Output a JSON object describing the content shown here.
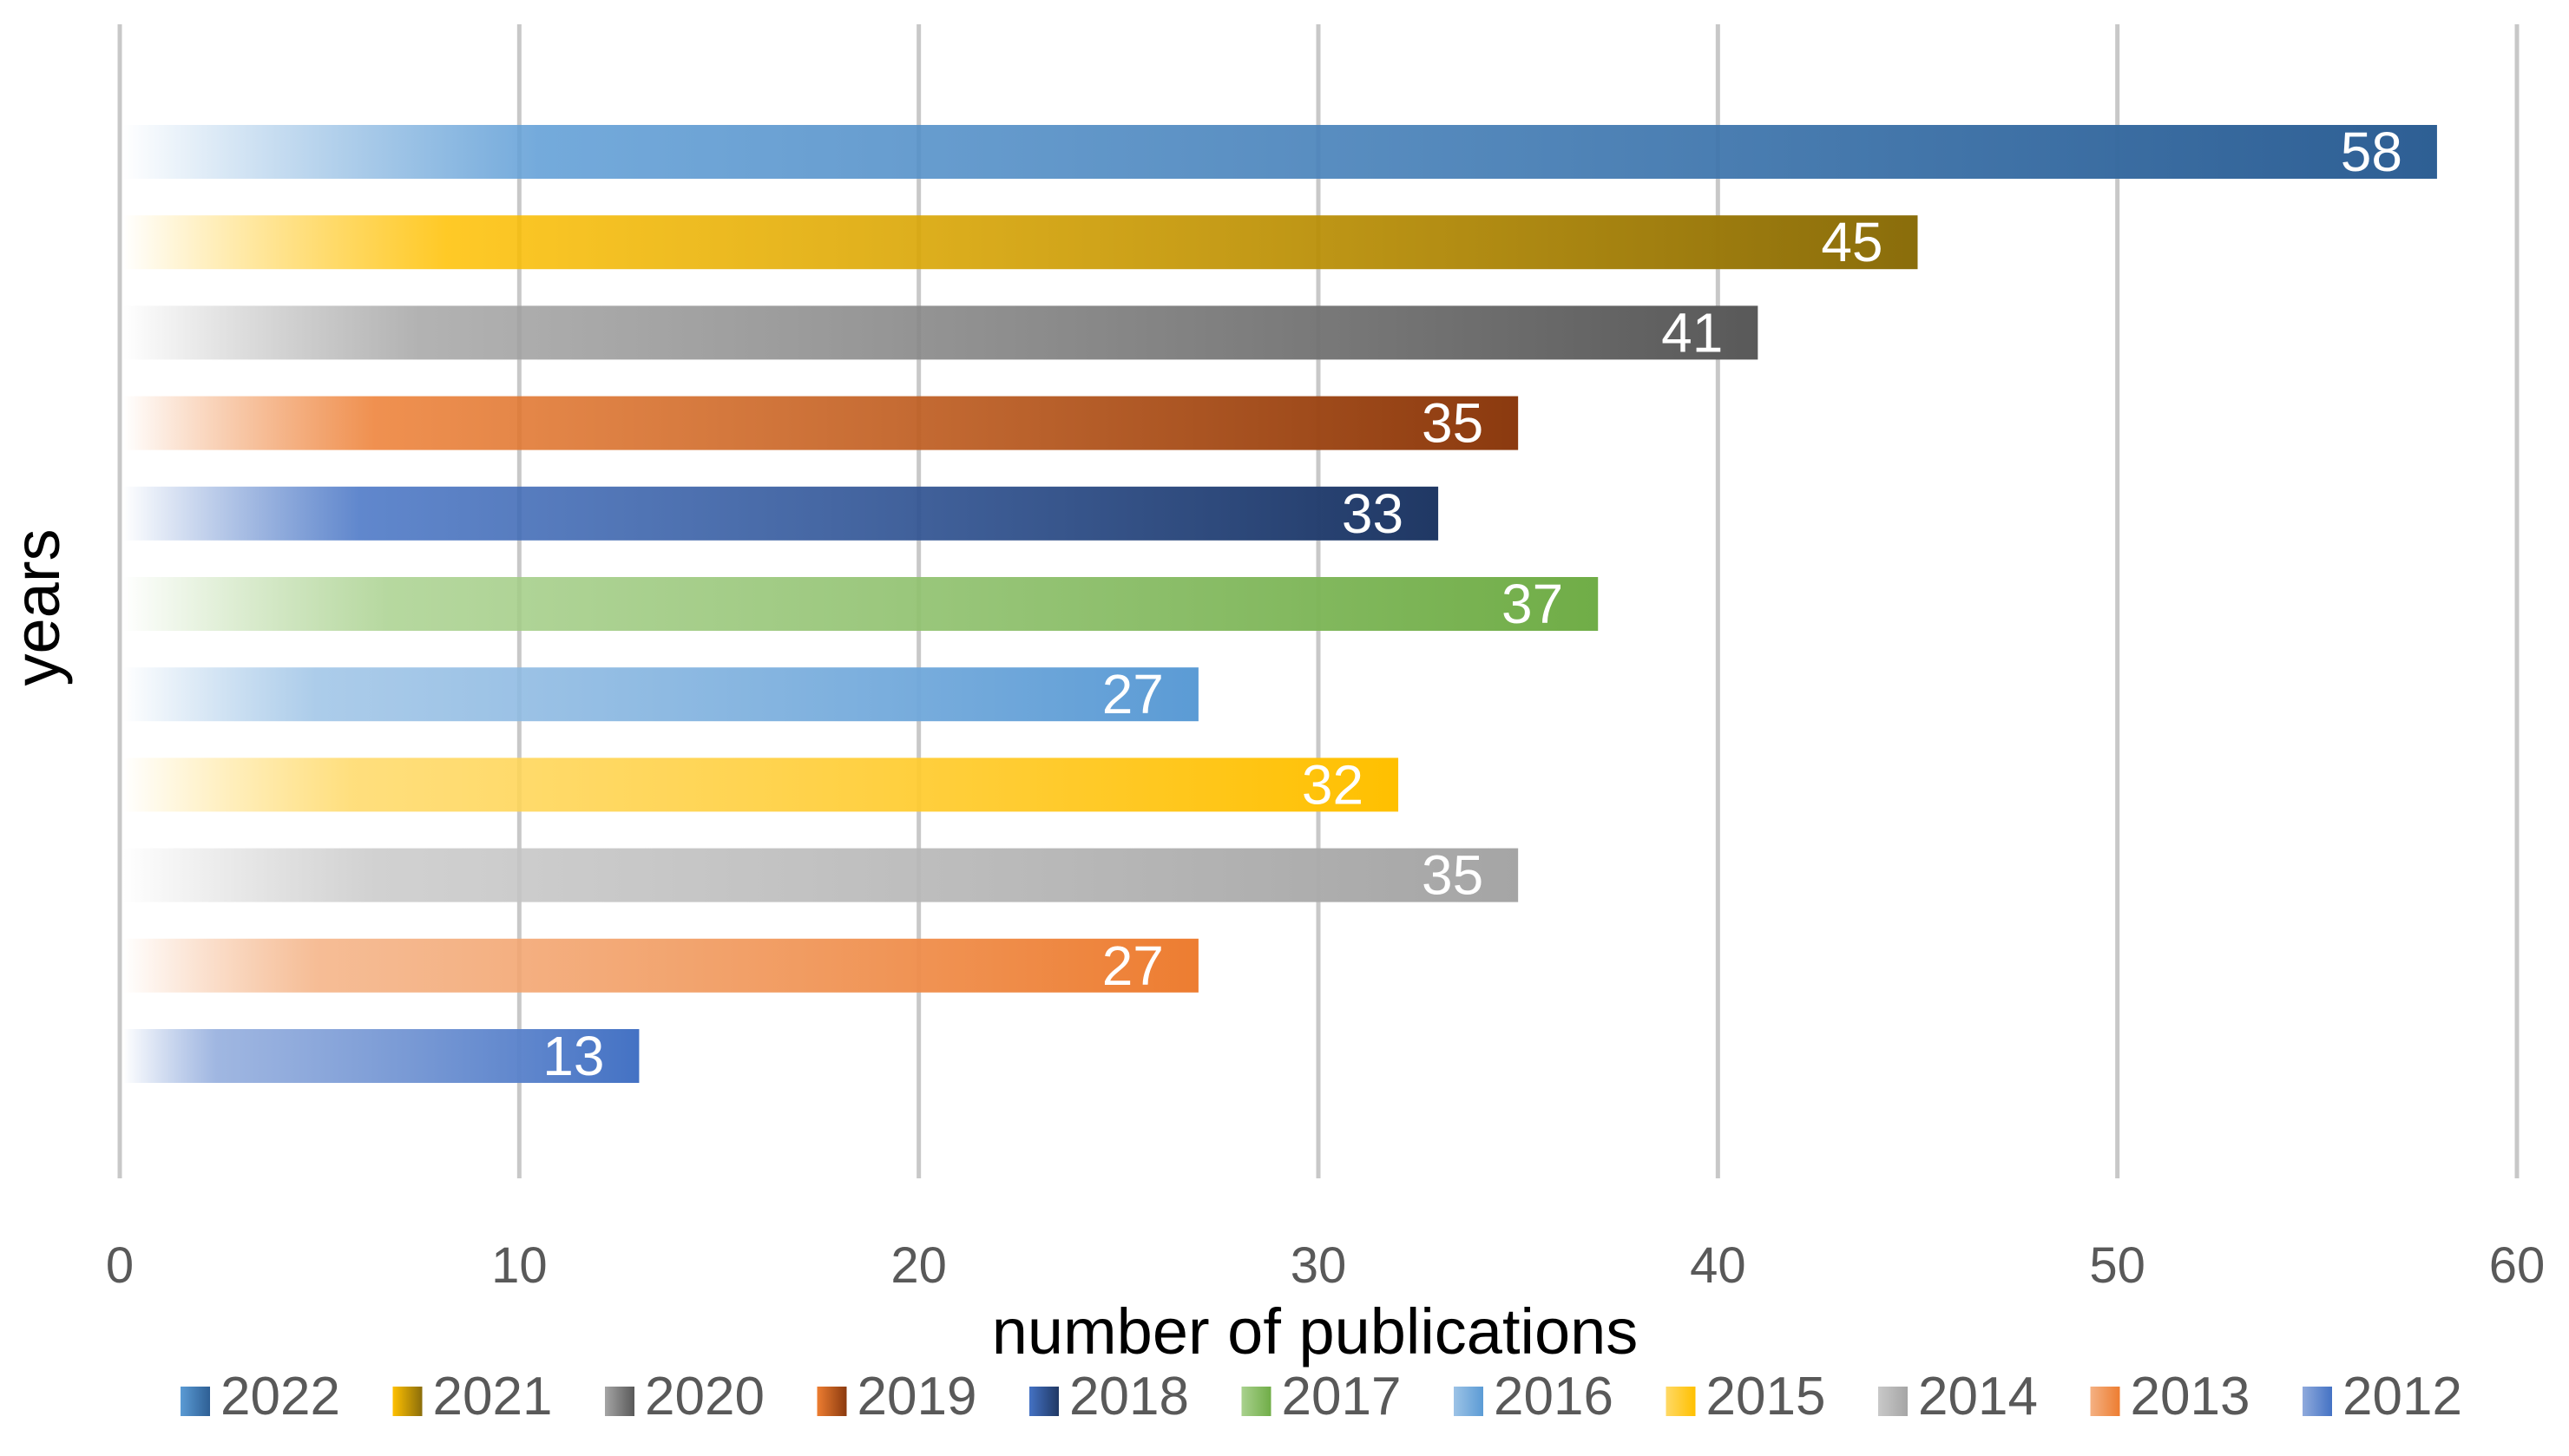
{
  "chart_data": {
    "type": "bar",
    "orientation": "horizontal",
    "xlabel": "number of publications",
    "ylabel": "years",
    "xlim": [
      0,
      60
    ],
    "x_ticks": [
      "0",
      "10",
      "20",
      "30",
      "40",
      "50",
      "60"
    ],
    "grid": true,
    "legend_position": "bottom",
    "series": [
      {
        "name": "2022",
        "value": 58,
        "color": "#2e5f94",
        "light": "#5b9bd5"
      },
      {
        "name": "2021",
        "value": 45,
        "color": "#8a6d0b",
        "light": "#ffc000"
      },
      {
        "name": "2020",
        "value": 41,
        "color": "#595959",
        "light": "#a5a5a5"
      },
      {
        "name": "2019",
        "value": 35,
        "color": "#8b3a0f",
        "light": "#ed7d31"
      },
      {
        "name": "2018",
        "value": 33,
        "color": "#203864",
        "light": "#4472c4"
      },
      {
        "name": "2017",
        "value": 37,
        "color": "#70ad47",
        "light": "#a9d18e"
      },
      {
        "name": "2016",
        "value": 27,
        "color": "#5b9bd5",
        "light": "#9dc3e6"
      },
      {
        "name": "2015",
        "value": 32,
        "color": "#ffc000",
        "light": "#ffd966"
      },
      {
        "name": "2014",
        "value": 35,
        "color": "#a5a5a5",
        "light": "#c9c9c9"
      },
      {
        "name": "2013",
        "value": 27,
        "color": "#ed7d31",
        "light": "#f4b183"
      },
      {
        "name": "2012",
        "value": 13,
        "color": "#4472c4",
        "light": "#8faadc"
      }
    ]
  }
}
